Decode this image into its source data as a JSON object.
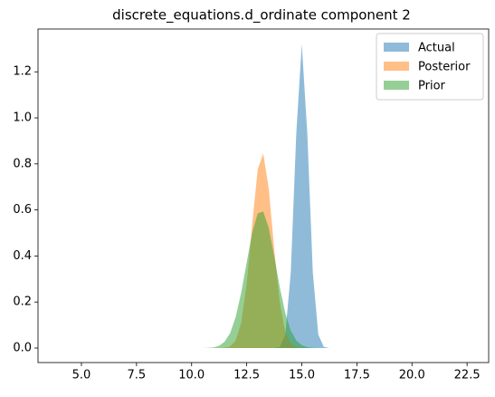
{
  "chart_data": {
    "type": "area",
    "title": "discrete_equations.d_ordinate component 2",
    "x": [
      10.5,
      10.75,
      11,
      11.25,
      11.5,
      11.75,
      12,
      12.25,
      12.5,
      12.75,
      13,
      13.25,
      13.5,
      13.75,
      14,
      14.25,
      14.5,
      14.75,
      15,
      15.25,
      15.5,
      15.75,
      16,
      16.25
    ],
    "series": [
      {
        "name": "Actual",
        "color": "#1f77b4",
        "values": [
          0,
          0,
          0,
          0,
          0,
          0,
          0,
          0,
          0,
          0,
          0,
          0,
          0,
          0,
          0.005,
          0.058,
          0.329,
          0.933,
          1.32,
          0.933,
          0.329,
          0.058,
          0.005,
          0
        ]
      },
      {
        "name": "Posterior",
        "color": "#ff7f0e",
        "values": [
          0,
          0,
          0,
          0,
          0.001,
          0.007,
          0.033,
          0.11,
          0.28,
          0.538,
          0.776,
          0.845,
          0.693,
          0.428,
          0.2,
          0.07,
          0.019,
          0.004,
          0.001,
          0,
          0,
          0,
          0,
          0
        ]
      },
      {
        "name": "Prior",
        "color": "#2ca02c",
        "values": [
          0,
          0.001,
          0.003,
          0.01,
          0.028,
          0.065,
          0.135,
          0.24,
          0.372,
          0.501,
          0.585,
          0.593,
          0.522,
          0.399,
          0.265,
          0.153,
          0.076,
          0.033,
          0.013,
          0.004,
          0.001,
          0,
          0,
          0
        ]
      }
    ],
    "xlim": [
      3.03,
      23.48
    ],
    "xticks": [
      {
        "value": 5,
        "label": "5.0"
      },
      7.5,
      {
        "value": 10,
        "label": "10.0"
      },
      12.5,
      {
        "value": 15,
        "label": "15.0"
      },
      17.5,
      {
        "value": 20,
        "label": "20.0"
      },
      22.5
    ],
    "ylim": [
      -0.063,
      1.386
    ],
    "yticks": [
      {
        "value": 0,
        "label": "0.0"
      },
      0.2,
      0.4,
      0.6,
      0.8,
      {
        "value": 1,
        "label": "1.0"
      },
      1.2
    ],
    "opacity": 0.5,
    "legend": "upper right"
  }
}
